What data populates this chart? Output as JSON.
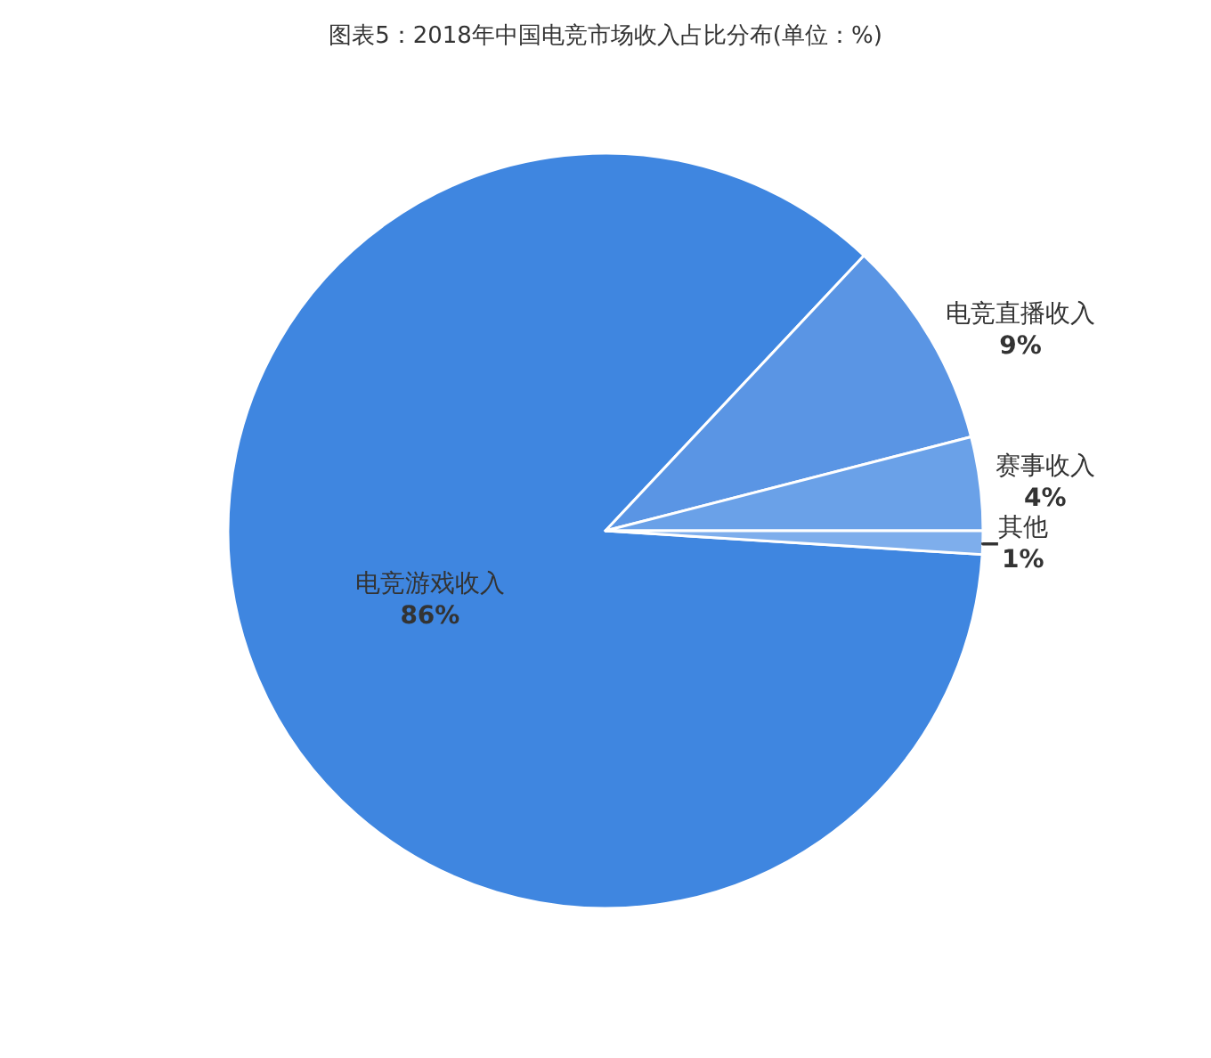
{
  "chart_data": {
    "type": "pie",
    "title": "图表5：2018年中国电竞市场收入占比分布(单位：%)",
    "categories": [
      "电竞游戏收入",
      "电竞直播收入",
      "赛事收入",
      "其他"
    ],
    "values": [
      86,
      9,
      4,
      1
    ],
    "value_labels": [
      "86%",
      "9%",
      "4%",
      "1%"
    ],
    "colors": [
      "#3f86e0",
      "#5a95e4",
      "#6aa1e8",
      "#7eaeec"
    ],
    "legend": false
  }
}
